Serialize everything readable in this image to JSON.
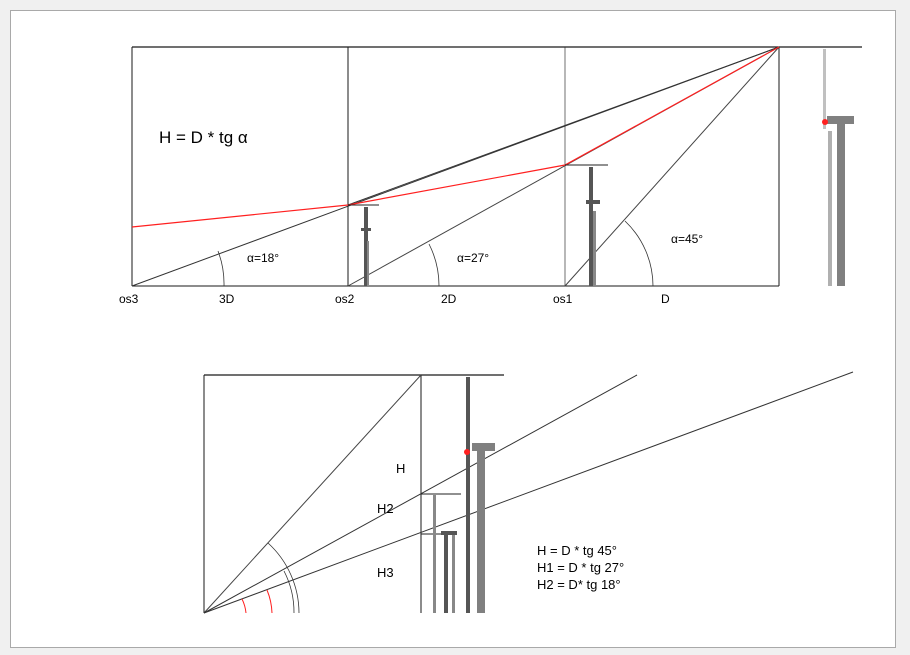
{
  "colors": {
    "background": "#f0f0f0",
    "canvas": "#ffffff",
    "frame_border": "#a9a9a9",
    "line_dark": "#1a1a1a",
    "line_gray": "#555555",
    "red": "#ff2020",
    "pole_gray": "#808080",
    "pole_light": "#c0c0c0"
  },
  "top_diagram": {
    "formula": "H = D * tg α",
    "angles": [
      "α=18°",
      "α=27°",
      "α=45°"
    ],
    "stations": [
      "os3",
      "os2",
      "os1"
    ],
    "distances": [
      "3D",
      "2D",
      "D"
    ]
  },
  "bottom_diagram": {
    "height_labels": [
      "H",
      "H2",
      "H3"
    ],
    "formulas": [
      "H = D * tg 45°",
      "H1 = D * tg 27°",
      "H2 = D* tg 18°"
    ]
  }
}
